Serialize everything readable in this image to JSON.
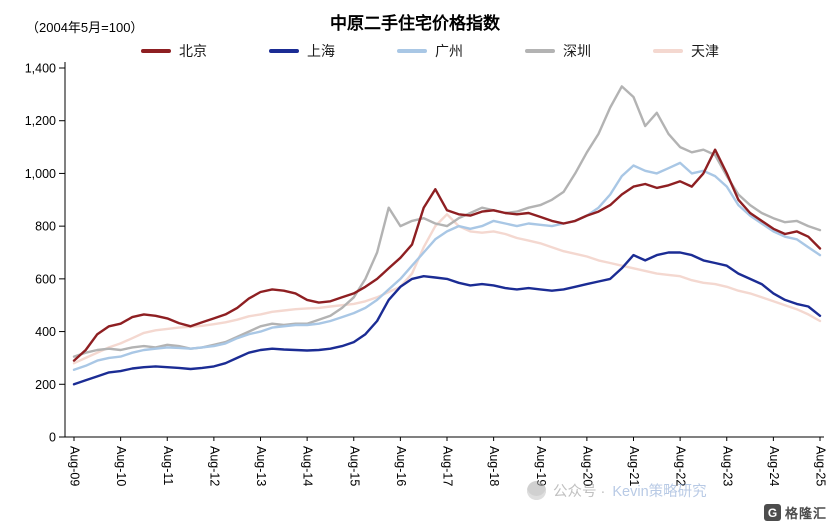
{
  "watermark": {
    "prefix": "公众号 · ",
    "name": "Kevin策略研究"
  },
  "brand_logo": {
    "letter": "G",
    "text": "格隆汇"
  },
  "chart_data": {
    "type": "line",
    "title": "中原二手住宅价格指数",
    "note": "（2004年5月=100）",
    "grid": false,
    "legend_position": "top",
    "x_start": "Aug-09",
    "x_end": "Aug-25",
    "points_per_year": 4,
    "x_tick_labels": [
      "Aug-09",
      "Aug-10",
      "Aug-11",
      "Aug-12",
      "Aug-13",
      "Aug-14",
      "Aug-15",
      "Aug-16",
      "Aug-17",
      "Aug-18",
      "Aug-19",
      "Aug-20",
      "Aug-21",
      "Aug-22",
      "Aug-23",
      "Aug-24",
      "Aug-25"
    ],
    "ylim": [
      0,
      1400
    ],
    "y_ticks": [
      0,
      200,
      400,
      600,
      800,
      1000,
      1200,
      1400
    ],
    "y_tick_labels": [
      "0",
      "200",
      "400",
      "600",
      "800",
      "1,000",
      "1,200",
      "1,400"
    ],
    "series": [
      {
        "id": "beijing",
        "name": "北京",
        "color": "#8E1F22",
        "values": [
          290,
          330,
          390,
          420,
          430,
          455,
          465,
          460,
          450,
          432,
          420,
          435,
          450,
          465,
          490,
          525,
          550,
          560,
          555,
          545,
          520,
          510,
          515,
          530,
          545,
          570,
          600,
          640,
          680,
          730,
          870,
          940,
          860,
          845,
          840,
          855,
          860,
          850,
          845,
          850,
          835,
          820,
          810,
          820,
          840,
          855,
          880,
          920,
          950,
          960,
          945,
          955,
          970,
          950,
          1000,
          1090,
          1000,
          900,
          850,
          820,
          790,
          770,
          780,
          760,
          715
        ]
      },
      {
        "id": "shanghai",
        "name": "上海",
        "color": "#1B2C94",
        "values": [
          200,
          215,
          230,
          245,
          250,
          260,
          265,
          268,
          265,
          262,
          258,
          262,
          268,
          280,
          300,
          320,
          330,
          335,
          332,
          330,
          328,
          330,
          335,
          345,
          360,
          390,
          440,
          520,
          570,
          600,
          610,
          605,
          600,
          585,
          575,
          580,
          575,
          565,
          560,
          565,
          560,
          555,
          560,
          570,
          580,
          590,
          600,
          640,
          690,
          670,
          690,
          700,
          700,
          690,
          670,
          660,
          650,
          620,
          600,
          580,
          545,
          520,
          505,
          495,
          460
        ]
      },
      {
        "id": "guangzhou",
        "name": "广州",
        "color": "#A9C7E5",
        "values": [
          255,
          270,
          290,
          300,
          305,
          320,
          330,
          335,
          340,
          338,
          335,
          340,
          345,
          355,
          375,
          390,
          400,
          415,
          420,
          425,
          425,
          430,
          440,
          455,
          470,
          490,
          520,
          560,
          600,
          650,
          700,
          750,
          780,
          800,
          790,
          800,
          820,
          810,
          800,
          810,
          805,
          800,
          810,
          820,
          840,
          870,
          920,
          990,
          1030,
          1010,
          1000,
          1020,
          1040,
          1000,
          1010,
          990,
          950,
          880,
          840,
          810,
          780,
          760,
          750,
          720,
          690
        ]
      },
      {
        "id": "shenzhen",
        "name": "深圳",
        "color": "#B3B3B3",
        "values": [
          305,
          320,
          330,
          335,
          330,
          340,
          345,
          340,
          350,
          345,
          335,
          340,
          350,
          360,
          380,
          400,
          420,
          430,
          425,
          430,
          430,
          445,
          460,
          490,
          530,
          600,
          700,
          870,
          800,
          820,
          830,
          810,
          800,
          830,
          850,
          870,
          860,
          850,
          855,
          870,
          880,
          900,
          930,
          1000,
          1080,
          1150,
          1250,
          1330,
          1290,
          1180,
          1230,
          1150,
          1100,
          1080,
          1090,
          1070,
          990,
          920,
          880,
          850,
          830,
          815,
          820,
          800,
          785
        ]
      },
      {
        "id": "tianjin",
        "name": "天津",
        "color": "#F4D8D0",
        "values": [
          280,
          300,
          320,
          340,
          355,
          375,
          395,
          405,
          410,
          415,
          418,
          422,
          428,
          435,
          445,
          458,
          465,
          475,
          480,
          485,
          488,
          490,
          495,
          500,
          505,
          515,
          530,
          550,
          570,
          620,
          720,
          800,
          845,
          800,
          780,
          775,
          780,
          770,
          755,
          745,
          735,
          720,
          705,
          695,
          685,
          670,
          660,
          650,
          640,
          630,
          620,
          615,
          610,
          595,
          585,
          580,
          570,
          555,
          545,
          530,
          515,
          500,
          485,
          465,
          440
        ]
      }
    ]
  }
}
